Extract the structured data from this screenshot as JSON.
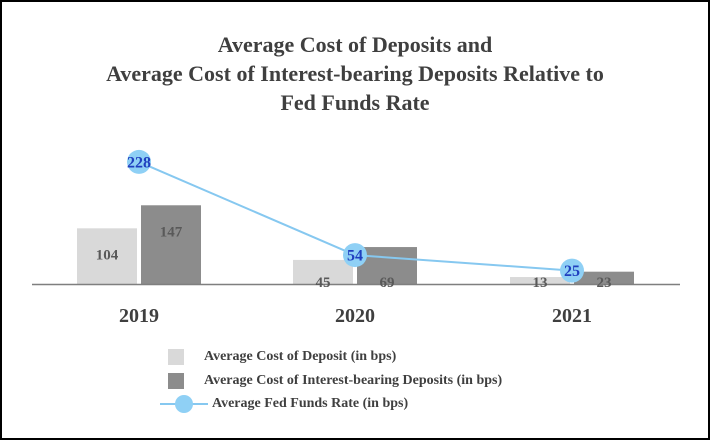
{
  "chart_data": {
    "type": "bar",
    "title_lines": [
      "Average Cost of Deposits and",
      "Average Cost of Interest-bearing Deposits Relative to",
      "Fed Funds Rate"
    ],
    "categories": [
      "2019",
      "2020",
      "2021"
    ],
    "series": [
      {
        "name": "Average Cost of Deposit (in bps)",
        "kind": "bar",
        "color": "#d9d9d9",
        "values": [
          104,
          45,
          13
        ]
      },
      {
        "name": "Average Cost of Interest-bearing Deposits (in bps)",
        "kind": "bar",
        "color": "#8c8c8c",
        "values": [
          147,
          69,
          23
        ]
      },
      {
        "name": "Average Fed Funds Rate (in bps)",
        "kind": "line",
        "color": "#86c8f0",
        "marker_color": "#8fd0f5",
        "label_color": "#1f3fbf",
        "values": [
          228,
          54,
          25
        ]
      }
    ],
    "ylim": [
      0,
      310
    ],
    "xlabel": "",
    "ylabel": "",
    "grid": false,
    "legend_position": "bottom"
  }
}
